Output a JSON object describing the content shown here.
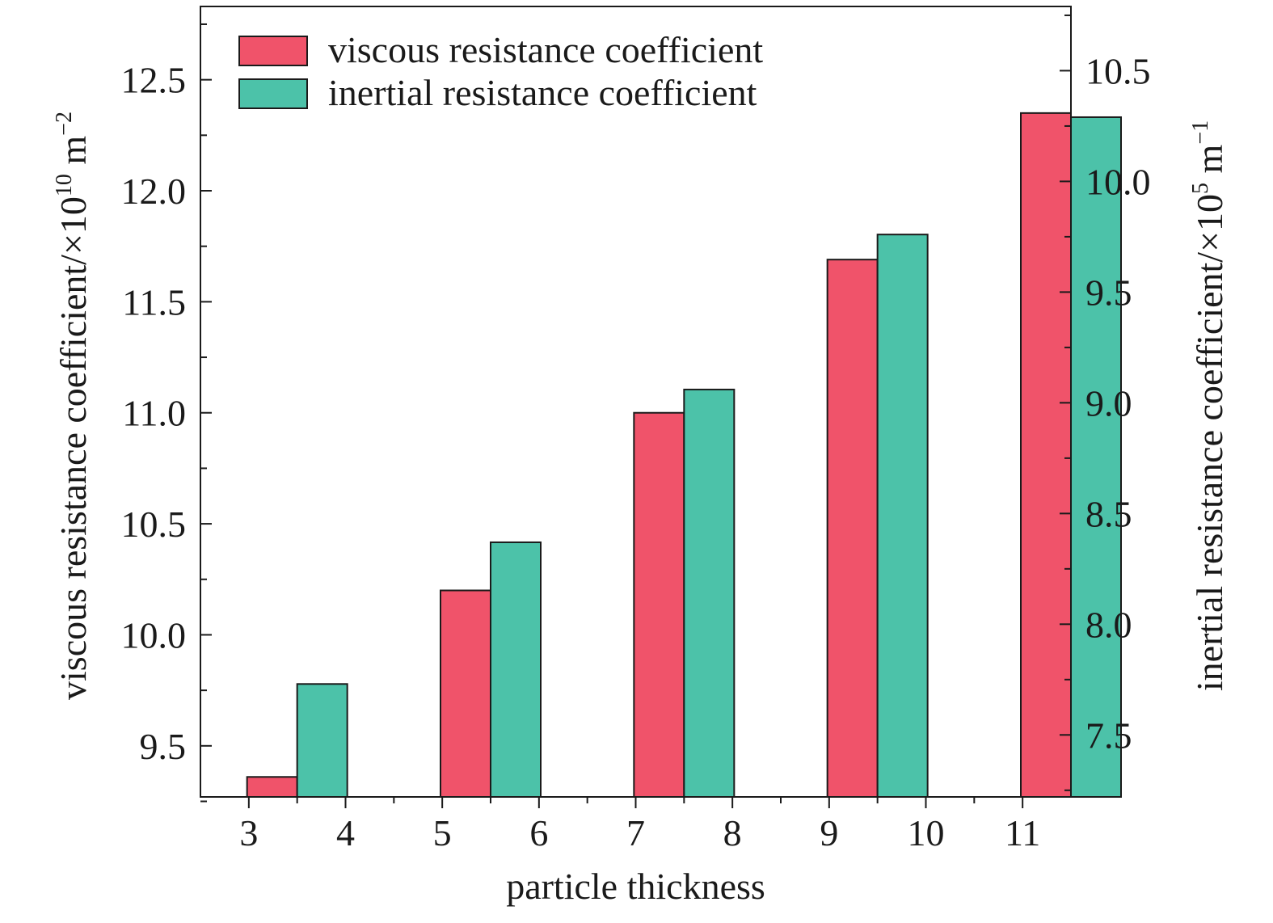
{
  "chart_data": {
    "type": "bar",
    "xlabel": "particle thickness",
    "ylabel_left": {
      "main": "viscous resistance coefficient/×10",
      "exp": "10",
      "unit": " m",
      "unit_exp": "−2"
    },
    "ylabel_right": {
      "main": "inertial resistance coefficient/×10",
      "exp": "5",
      "unit": " m",
      "unit_exp": "−1"
    },
    "x_ticks": [
      "3",
      "4",
      "5",
      "6",
      "7",
      "8",
      "9",
      "10",
      "11"
    ],
    "left_ticks": [
      "9.5",
      "10.0",
      "10.5",
      "11.0",
      "11.5",
      "12.0",
      "12.5"
    ],
    "right_ticks": [
      "7.5",
      "8.0",
      "8.5",
      "9.0",
      "9.5",
      "10.0",
      "10.5"
    ],
    "left_ylim": [
      9.27,
      12.83
    ],
    "right_ylim": [
      7.22,
      10.79
    ],
    "groups_x": [
      3.5,
      5.5,
      7.5,
      9.5,
      11.5
    ],
    "series": [
      {
        "name": "viscous resistance coefficient",
        "axis": "left",
        "color": "#f0536a",
        "values": [
          9.36,
          10.2,
          11.0,
          11.69,
          12.35
        ]
      },
      {
        "name": "inertial resistance coefficient",
        "axis": "right",
        "color": "#4cc2a9",
        "values": [
          7.73,
          8.37,
          9.06,
          9.76,
          10.29
        ]
      }
    ],
    "legend_position": "top-left",
    "grid": false
  }
}
